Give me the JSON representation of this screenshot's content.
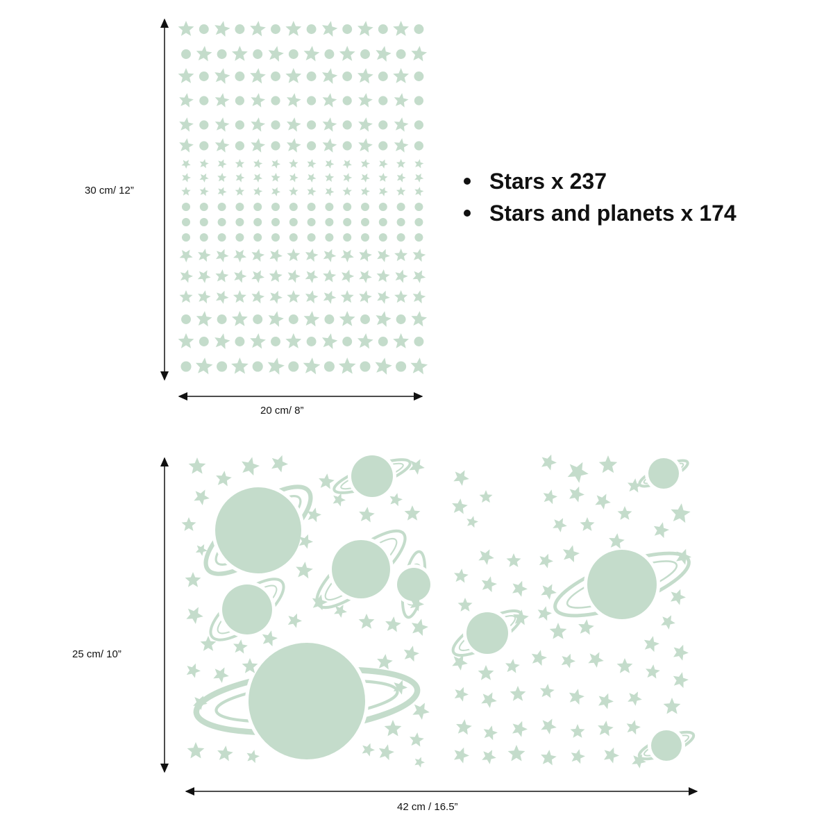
{
  "colors": {
    "sticker": "#c4dccb",
    "ink": "#111111"
  },
  "top_sheet": {
    "height_label": "30 cm/ 12”",
    "width_label": "20 cm/ 8”"
  },
  "bottom_sheets": {
    "height_label": "25 cm/ 10”",
    "width_label": "42 cm / 16.5”"
  },
  "features": [
    {
      "text": "Stars  x 237"
    },
    {
      "text": "Stars and planets  x 174"
    }
  ],
  "icons": [
    "star-icon",
    "dot-icon",
    "planet-icon",
    "ringed-planet-icon",
    "moon-icon",
    "arrow-icon"
  ]
}
